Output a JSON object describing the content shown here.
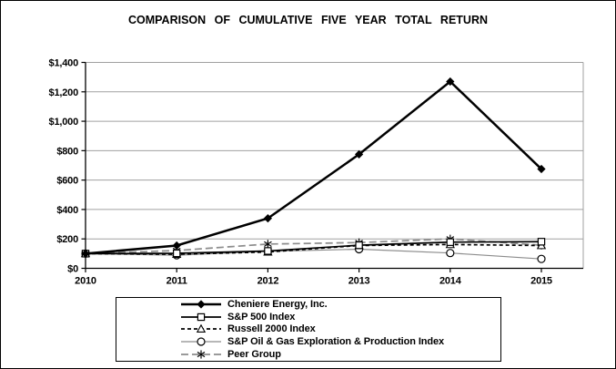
{
  "colors": {
    "background": "#ffffff",
    "border": "#000000",
    "grid": "#a0a0a0",
    "line_black": "#000000",
    "line_gray": "#8c8c8c"
  },
  "chart_data": {
    "type": "line",
    "title": "COMPARISON OF CUMULATIVE FIVE YEAR TOTAL RETURN",
    "x": [
      2010,
      2011,
      2012,
      2013,
      2014,
      2015
    ],
    "x_tick_labels": [
      "2010",
      "2011",
      "2012",
      "2013",
      "2014",
      "2015"
    ],
    "y_tick_labels": [
      "$0",
      "$200",
      "$400",
      "$600",
      "$800",
      "$1,000",
      "$1,200",
      "$1,400"
    ],
    "y_tick_values": [
      0,
      200,
      400,
      600,
      800,
      1000,
      1200,
      1400
    ],
    "ylim": [
      0,
      1400
    ],
    "grid": "horizontal-gray",
    "legend_position": "bottom-box",
    "series": [
      {
        "name": "Cheniere Energy, Inc.",
        "marker": "diamond-filled",
        "line": "solid-black",
        "values": [
          100,
          155,
          340,
          775,
          1270,
          675
        ]
      },
      {
        "name": "S&P 500 Index",
        "marker": "square-open",
        "line": "solid-black",
        "values": [
          100,
          102,
          118,
          157,
          178,
          181
        ]
      },
      {
        "name": "Russell 2000 Index",
        "marker": "triangle-open",
        "line": "dashed-black",
        "values": [
          100,
          96,
          111,
          155,
          162,
          155
        ]
      },
      {
        "name": "S&P Oil & Gas Exploration & Production Index",
        "marker": "circle-open",
        "line": "solid-gray",
        "values": [
          100,
          89,
          115,
          130,
          104,
          64
        ]
      },
      {
        "name": "Peer Group",
        "marker": "asterisk",
        "line": "dashed-gray",
        "values": [
          100,
          121,
          165,
          175,
          200,
          157
        ]
      }
    ]
  }
}
